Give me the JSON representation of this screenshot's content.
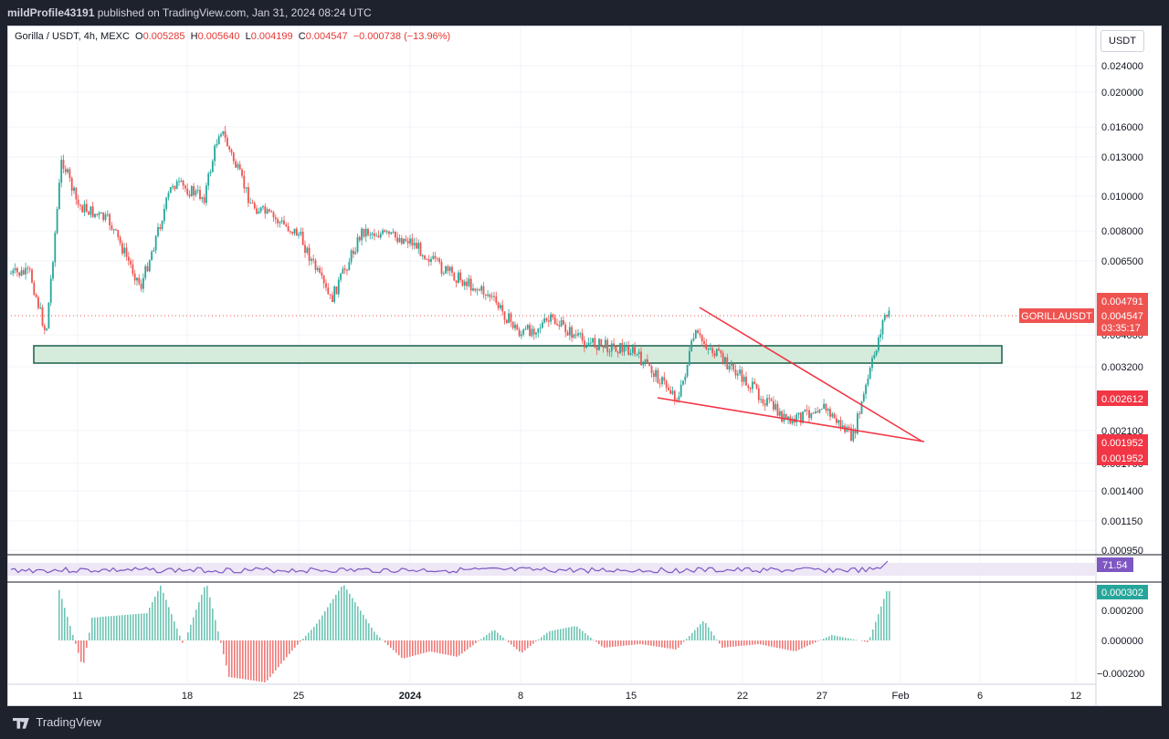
{
  "header": {
    "user": "mildProfile43191",
    "published_text": "published on TradingView.com, Jan 31, 2024 08:24 UTC"
  },
  "legend": {
    "symbol": "Gorilla / USDT, 4h, MEXC",
    "open_label": "O",
    "open": "0.005285",
    "high_label": "H",
    "high": "0.005640",
    "low_label": "L",
    "low": "0.004199",
    "close_label": "C",
    "close": "0.004547",
    "change": "−0.000738 (−13.96%)"
  },
  "currency_button": "USDT",
  "price_axis": {
    "ticks": [
      "0.024000",
      "0.020000",
      "0.016000",
      "0.013000",
      "0.010000",
      "0.008000",
      "0.006500",
      "0.004000",
      "0.003200",
      "0.002100",
      "0.001700",
      "0.001400",
      "0.001150",
      "0.000950"
    ]
  },
  "price_labels": {
    "symbol_tag": "GORILLAUSDT",
    "high_tag": "0.004791",
    "last_price": "0.004547",
    "countdown": "03:35:17",
    "level_1": "0.002612",
    "level_2": "0.001952",
    "level_3": "0.001952"
  },
  "rsi": {
    "value": "71.54"
  },
  "macd": {
    "value": "0.000302",
    "ticks": [
      "0.000200",
      "0.000000",
      "−0.000200"
    ]
  },
  "time_axis": {
    "ticks": [
      "11",
      "18",
      "25",
      "2024",
      "8",
      "15",
      "22",
      "27",
      "Feb",
      "6",
      "12"
    ]
  },
  "footer": {
    "brand": "TradingView"
  },
  "colors": {
    "up": "#26a69a",
    "down": "#ef5350",
    "zone_fill": "#d5ebdc",
    "zone_border": "#1b5e4b",
    "wedge": "#f23645",
    "rsi": "#7e57c2",
    "rsi_band": "#ede7f6"
  },
  "chart_data": {
    "type": "candlestick",
    "timeframe": "4h",
    "ohlc_key_series": [
      {
        "date": "Dec 8",
        "close": 0.006
      },
      {
        "date": "Dec 9",
        "close": 0.004
      },
      {
        "date": "Dec 10",
        "close": 0.013
      },
      {
        "date": "Dec 11",
        "close": 0.0095
      },
      {
        "date": "Dec 13",
        "close": 0.0085
      },
      {
        "date": "Dec 15",
        "close": 0.0055
      },
      {
        "date": "Dec 17",
        "close": 0.011
      },
      {
        "date": "Dec 19",
        "close": 0.01
      },
      {
        "date": "Dec 20",
        "close": 0.016
      },
      {
        "date": "Dec 22",
        "close": 0.0095
      },
      {
        "date": "Dec 25",
        "close": 0.0078
      },
      {
        "date": "Dec 27",
        "close": 0.005
      },
      {
        "date": "Dec 29",
        "close": 0.008
      },
      {
        "date": "Jan 1",
        "close": 0.0075
      },
      {
        "date": "Jan 3",
        "close": 0.0062
      },
      {
        "date": "Jan 6",
        "close": 0.0052
      },
      {
        "date": "Jan 8",
        "close": 0.004
      },
      {
        "date": "Jan 10",
        "close": 0.0044
      },
      {
        "date": "Jan 12",
        "close": 0.0038
      },
      {
        "date": "Jan 15",
        "close": 0.0036
      },
      {
        "date": "Jan 18",
        "close": 0.0026
      },
      {
        "date": "Jan 19",
        "close": 0.004
      },
      {
        "date": "Jan 21",
        "close": 0.0033
      },
      {
        "date": "Jan 23",
        "close": 0.0027
      },
      {
        "date": "Jan 25",
        "close": 0.0022
      },
      {
        "date": "Jan 27",
        "close": 0.0025
      },
      {
        "date": "Jan 29",
        "close": 0.002
      },
      {
        "date": "Jan 30",
        "close": 0.003
      },
      {
        "date": "Jan 31",
        "close": 0.004547
      }
    ],
    "support_zone": [
      0.0032,
      0.0036
    ],
    "wedge_upper": [
      {
        "date": "Jan 19",
        "price": 0.0043
      },
      {
        "date": "Feb 2",
        "price": 0.002
      }
    ],
    "wedge_lower": [
      {
        "date": "Jan 17",
        "price": 0.0026
      },
      {
        "date": "Feb 2",
        "price": 0.002
      }
    ],
    "rsi_last": 71.54,
    "macd_hist_last": 0.000302,
    "yscale": "log",
    "grid": true
  }
}
